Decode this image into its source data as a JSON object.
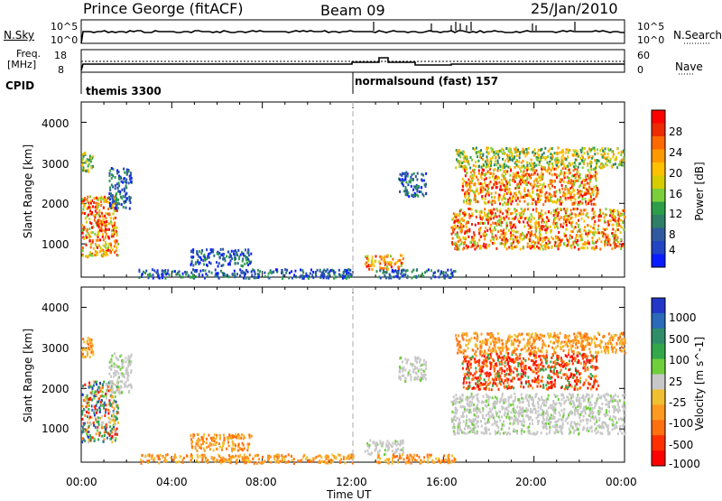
{
  "header": {
    "station": "Prince George (fitACF)",
    "beam": "Beam 09",
    "date": "25/Jan/2010"
  },
  "nsky_panel": {
    "left_label": "N.Sky",
    "left_ticks": [
      "10^5",
      "10^0"
    ],
    "right_label": "N.Search",
    "right_ticks": [
      "10^5",
      "10^0"
    ]
  },
  "freq_panel": {
    "left_label_1": "Freq.",
    "left_label_2": "[MHz]",
    "left_ticks": [
      "18",
      "8"
    ],
    "right_label": "Nave",
    "right_ticks": [
      "60",
      "0"
    ]
  },
  "cpid_panel": {
    "label": "CPID",
    "modes": [
      {
        "name": "themis 3300",
        "start_hour": 0
      },
      {
        "name": "normalsound (fast) 157",
        "start_hour": 12.0
      }
    ]
  },
  "x_axis": {
    "title": "Time UT",
    "ticks": [
      "00:00",
      "04:00",
      "08:00",
      "12:00",
      "16:00",
      "20:00",
      "00:00"
    ],
    "range_hours": [
      0,
      24
    ]
  },
  "chart_data": [
    {
      "type": "heatmap",
      "name": "power",
      "ylabel": "Slant Range [km]",
      "yticks": [
        "4000",
        "3000",
        "2000",
        "1000"
      ],
      "ylim": [
        180,
        4500
      ],
      "colorbar": {
        "label": "Power [dB]",
        "ticks": [
          "28",
          "24",
          "20",
          "16",
          "12",
          "8",
          "4"
        ],
        "colors": [
          "#ff0000",
          "#ee2a00",
          "#ff6a00",
          "#ff9900",
          "#ffc000",
          "#d7cc00",
          "#7bcf3a",
          "#2c9e4a",
          "#2e7f66",
          "#2f5aa0",
          "#2145c4",
          "#0a1cff"
        ]
      },
      "regions": [
        {
          "t0": 0.0,
          "t1": 0.5,
          "r0": 2800,
          "r1": 3300,
          "level": "medium"
        },
        {
          "t0": 0.0,
          "t1": 1.6,
          "r0": 700,
          "r1": 2200,
          "level": "high"
        },
        {
          "t0": 1.2,
          "t1": 2.2,
          "r0": 1900,
          "r1": 2900,
          "level": "low"
        },
        {
          "t0": 4.8,
          "t1": 7.5,
          "r0": 480,
          "r1": 900,
          "level": "low"
        },
        {
          "t0": 2.5,
          "t1": 12.0,
          "r0": 180,
          "r1": 400,
          "level": "low"
        },
        {
          "t0": 12.5,
          "t1": 14.2,
          "r0": 400,
          "r1": 750,
          "level": "high"
        },
        {
          "t0": 13.0,
          "t1": 16.5,
          "r0": 180,
          "r1": 400,
          "level": "low"
        },
        {
          "t0": 14.0,
          "t1": 15.2,
          "r0": 2200,
          "r1": 2800,
          "level": "low"
        },
        {
          "t0": 16.3,
          "t1": 24.0,
          "r0": 900,
          "r1": 1900,
          "level": "high"
        },
        {
          "t0": 16.8,
          "t1": 22.8,
          "r0": 2000,
          "r1": 2900,
          "level": "high"
        },
        {
          "t0": 16.5,
          "t1": 24.0,
          "r0": 2900,
          "r1": 3400,
          "level": "medium"
        }
      ]
    },
    {
      "type": "heatmap",
      "name": "velocity",
      "ylabel": "Slant Range [km]",
      "yticks": [
        "4000",
        "3000",
        "2000",
        "1000"
      ],
      "ylim": [
        180,
        4500
      ],
      "colorbar": {
        "label": "Velocity [m s^-1]",
        "ticks": [
          "1000",
          "500",
          "100",
          "25",
          "-25",
          "-100",
          "-500",
          "-1000"
        ],
        "colors": [
          "#2237c8",
          "#2a6ab8",
          "#2f8d6a",
          "#33a84a",
          "#6fcf3a",
          "#c8c8c8",
          "#f0c030",
          "#ff9a20",
          "#ff7010",
          "#ff3000",
          "#ff0000"
        ]
      },
      "regions": [
        {
          "t0": 0.0,
          "t1": 0.5,
          "r0": 2800,
          "r1": 3300,
          "level": "negative"
        },
        {
          "t0": 0.0,
          "t1": 1.6,
          "r0": 700,
          "r1": 2200,
          "level": "mixed"
        },
        {
          "t0": 1.2,
          "t1": 2.2,
          "r0": 1900,
          "r1": 2900,
          "level": "ground"
        },
        {
          "t0": 4.8,
          "t1": 7.5,
          "r0": 480,
          "r1": 900,
          "level": "negative"
        },
        {
          "t0": 2.5,
          "t1": 12.0,
          "r0": 180,
          "r1": 400,
          "level": "negative"
        },
        {
          "t0": 12.5,
          "t1": 14.2,
          "r0": 400,
          "r1": 750,
          "level": "ground"
        },
        {
          "t0": 13.0,
          "t1": 16.5,
          "r0": 180,
          "r1": 400,
          "level": "negative"
        },
        {
          "t0": 14.0,
          "t1": 15.2,
          "r0": 2200,
          "r1": 2800,
          "level": "ground"
        },
        {
          "t0": 16.3,
          "t1": 24.0,
          "r0": 900,
          "r1": 1900,
          "level": "ground"
        },
        {
          "t0": 16.8,
          "t1": 22.8,
          "r0": 2000,
          "r1": 2900,
          "level": "strong-negative"
        },
        {
          "t0": 16.5,
          "t1": 24.0,
          "r0": 2900,
          "r1": 3400,
          "level": "negative"
        }
      ]
    }
  ]
}
